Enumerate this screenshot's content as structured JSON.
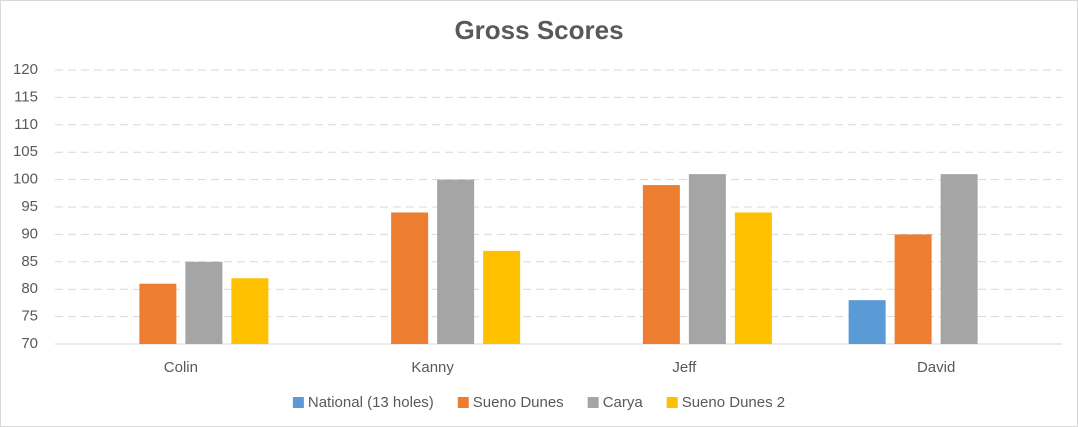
{
  "chart_data": {
    "type": "bar",
    "title": "Gross Scores",
    "categories": [
      "Colin",
      "Kanny",
      "Jeff",
      "David"
    ],
    "series": [
      {
        "name": "National (13 holes)",
        "color": "#5b9bd5",
        "values": [
          null,
          null,
          null,
          78
        ]
      },
      {
        "name": "Sueno Dunes",
        "color": "#ed7d31",
        "values": [
          81,
          94,
          99,
          90
        ]
      },
      {
        "name": "Carya",
        "color": "#a5a5a5",
        "values": [
          85,
          100,
          101,
          101
        ]
      },
      {
        "name": "Sueno Dunes 2",
        "color": "#ffc000",
        "values": [
          82,
          87,
          94,
          null
        ]
      }
    ],
    "ylim": [
      70,
      120
    ],
    "yticks": [
      70,
      75,
      80,
      85,
      90,
      95,
      100,
      105,
      110,
      115,
      120
    ],
    "grid": true,
    "legend": "bottom"
  }
}
